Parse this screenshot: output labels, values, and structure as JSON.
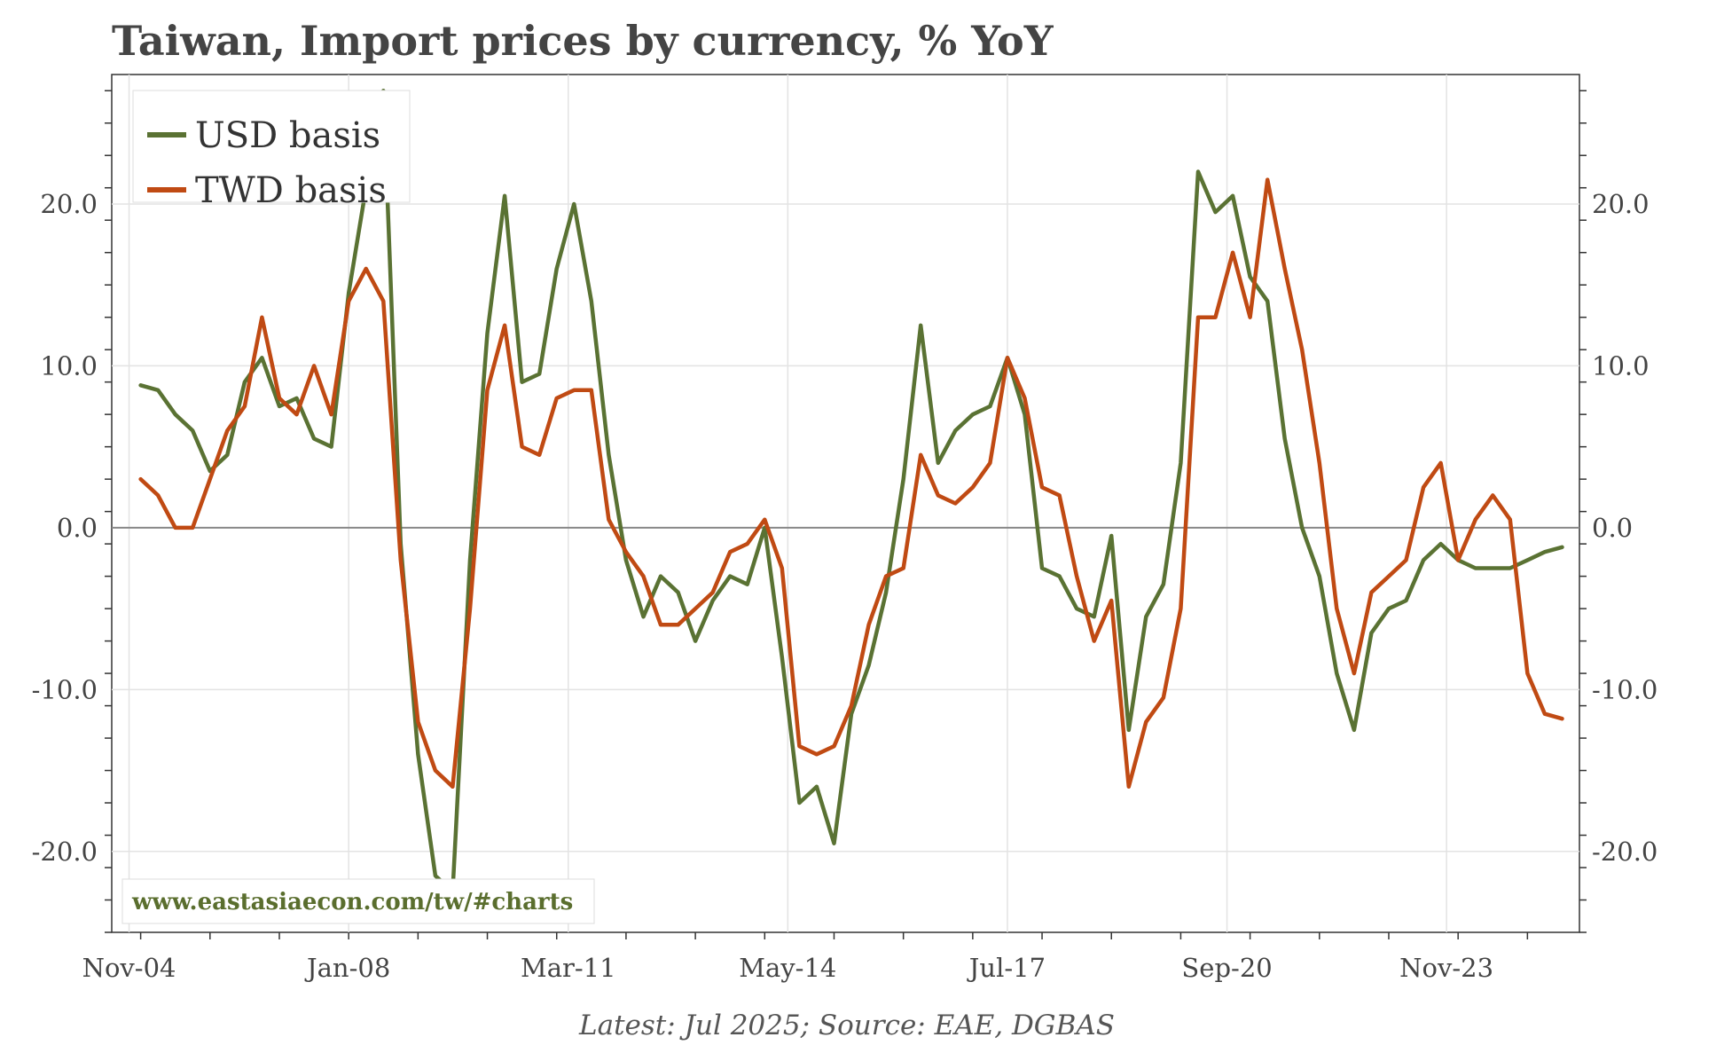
{
  "chart_data": {
    "type": "line",
    "title": "Taiwan, Import prices by currency, % YoY",
    "xlabel": "",
    "ylabel": "",
    "source": "Latest: Jul 2025; Source: EAE, DGBAS",
    "watermark": "www.eastasiaecon.com/tw/#charts",
    "ylim": [
      -25,
      28
    ],
    "x_range": [
      2004.583,
      2025.75
    ],
    "x_ticks": [
      {
        "label": "Nov-04",
        "value": 2004.833
      },
      {
        "label": "Jan-08",
        "value": 2008.0
      },
      {
        "label": "Mar-11",
        "value": 2011.167
      },
      {
        "label": "May-14",
        "value": 2014.333
      },
      {
        "label": "Jul-17",
        "value": 2017.5
      },
      {
        "label": "Sep-20",
        "value": 2020.667
      },
      {
        "label": "Nov-23",
        "value": 2023.833
      }
    ],
    "y_ticks": [
      {
        "label": "20.0",
        "value": 20
      },
      {
        "label": "10.0",
        "value": 10
      },
      {
        "label": "0.0",
        "value": 0
      },
      {
        "label": "-10.0",
        "value": -10
      },
      {
        "label": "-20.0",
        "value": -20
      }
    ],
    "legend_position": "top-left",
    "series": [
      {
        "name": "USD basis",
        "color": "#5a7233",
        "x": [
          2005.0,
          2005.25,
          2005.5,
          2005.75,
          2006.0,
          2006.25,
          2006.5,
          2006.75,
          2007.0,
          2007.25,
          2007.5,
          2007.75,
          2008.0,
          2008.25,
          2008.5,
          2008.75,
          2009.0,
          2009.25,
          2009.5,
          2009.75,
          2010.0,
          2010.25,
          2010.5,
          2010.75,
          2011.0,
          2011.25,
          2011.5,
          2011.75,
          2012.0,
          2012.25,
          2012.5,
          2012.75,
          2013.0,
          2013.25,
          2013.5,
          2013.75,
          2014.0,
          2014.25,
          2014.5,
          2014.75,
          2015.0,
          2015.25,
          2015.5,
          2015.75,
          2016.0,
          2016.25,
          2016.5,
          2016.75,
          2017.0,
          2017.25,
          2017.5,
          2017.75,
          2018.0,
          2018.25,
          2018.5,
          2018.75,
          2019.0,
          2019.25,
          2019.5,
          2019.75,
          2020.0,
          2020.25,
          2020.5,
          2020.75,
          2021.0,
          2021.25,
          2021.5,
          2021.75,
          2022.0,
          2022.25,
          2022.5,
          2022.75,
          2023.0,
          2023.25,
          2023.5,
          2023.75,
          2024.0,
          2024.25,
          2024.5,
          2024.75,
          2025.0,
          2025.25,
          2025.5
        ],
        "values": [
          8.8,
          8.5,
          7.0,
          6.0,
          3.5,
          4.5,
          9.0,
          10.5,
          7.5,
          8.0,
          5.5,
          5.0,
          14.5,
          21.0,
          27.0,
          -1.0,
          -14.0,
          -21.5,
          -22.5,
          -2.0,
          12.0,
          20.5,
          9.0,
          9.5,
          16.0,
          20.0,
          14.0,
          4.5,
          -2.0,
          -5.5,
          -3.0,
          -4.0,
          -7.0,
          -4.5,
          -3.0,
          -3.5,
          0.0,
          -8.0,
          -17.0,
          -16.0,
          -19.5,
          -11.5,
          -8.5,
          -4.0,
          3.0,
          12.5,
          4.0,
          6.0,
          7.0,
          7.5,
          10.5,
          7.0,
          -2.5,
          -3.0,
          -5.0,
          -5.5,
          -0.5,
          -12.5,
          -5.5,
          -3.5,
          4.0,
          22.0,
          19.5,
          20.5,
          15.5,
          14.0,
          5.5,
          0.0,
          -3.0,
          -9.0,
          -12.5,
          -6.5,
          -5.0,
          -4.5,
          -2.0,
          -1.0,
          -2.0,
          -2.5,
          -2.5,
          -2.5,
          -2.0,
          -1.5,
          -1.2
        ]
      },
      {
        "name": "TWD basis",
        "color": "#c04a13",
        "x": [
          2005.0,
          2005.25,
          2005.5,
          2005.75,
          2006.0,
          2006.25,
          2006.5,
          2006.75,
          2007.0,
          2007.25,
          2007.5,
          2007.75,
          2008.0,
          2008.25,
          2008.5,
          2008.75,
          2009.0,
          2009.25,
          2009.5,
          2009.75,
          2010.0,
          2010.25,
          2010.5,
          2010.75,
          2011.0,
          2011.25,
          2011.5,
          2011.75,
          2012.0,
          2012.25,
          2012.5,
          2012.75,
          2013.0,
          2013.25,
          2013.5,
          2013.75,
          2014.0,
          2014.25,
          2014.5,
          2014.75,
          2015.0,
          2015.25,
          2015.5,
          2015.75,
          2016.0,
          2016.25,
          2016.5,
          2016.75,
          2017.0,
          2017.25,
          2017.5,
          2017.75,
          2018.0,
          2018.25,
          2018.5,
          2018.75,
          2019.0,
          2019.25,
          2019.5,
          2019.75,
          2020.0,
          2020.25,
          2020.5,
          2020.75,
          2021.0,
          2021.25,
          2021.5,
          2021.75,
          2022.0,
          2022.25,
          2022.5,
          2022.75,
          2023.0,
          2023.25,
          2023.5,
          2023.75,
          2024.0,
          2024.25,
          2024.5,
          2024.75,
          2025.0,
          2025.25,
          2025.5
        ],
        "values": [
          3.0,
          2.0,
          0.0,
          0.0,
          3.0,
          6.0,
          7.5,
          13.0,
          8.0,
          7.0,
          10.0,
          7.0,
          14.0,
          16.0,
          14.0,
          -2.0,
          -12.0,
          -15.0,
          -16.0,
          -5.0,
          8.5,
          12.5,
          5.0,
          4.5,
          8.0,
          8.5,
          8.5,
          0.5,
          -1.5,
          -3.0,
          -6.0,
          -6.0,
          -5.0,
          -4.0,
          -1.5,
          -1.0,
          0.5,
          -2.5,
          -13.5,
          -14.0,
          -13.5,
          -11.0,
          -6.0,
          -3.0,
          -2.5,
          4.5,
          2.0,
          1.5,
          2.5,
          4.0,
          10.5,
          8.0,
          2.5,
          2.0,
          -3.0,
          -7.0,
          -4.5,
          -16.0,
          -12.0,
          -10.5,
          -5.0,
          13.0,
          13.0,
          17.0,
          13.0,
          21.5,
          16.0,
          11.0,
          4.0,
          -5.0,
          -9.0,
          -4.0,
          -3.0,
          -2.0,
          2.5,
          4.0,
          -2.0,
          0.5,
          2.0,
          0.5,
          -9.0,
          -11.5,
          -11.8
        ]
      }
    ]
  }
}
